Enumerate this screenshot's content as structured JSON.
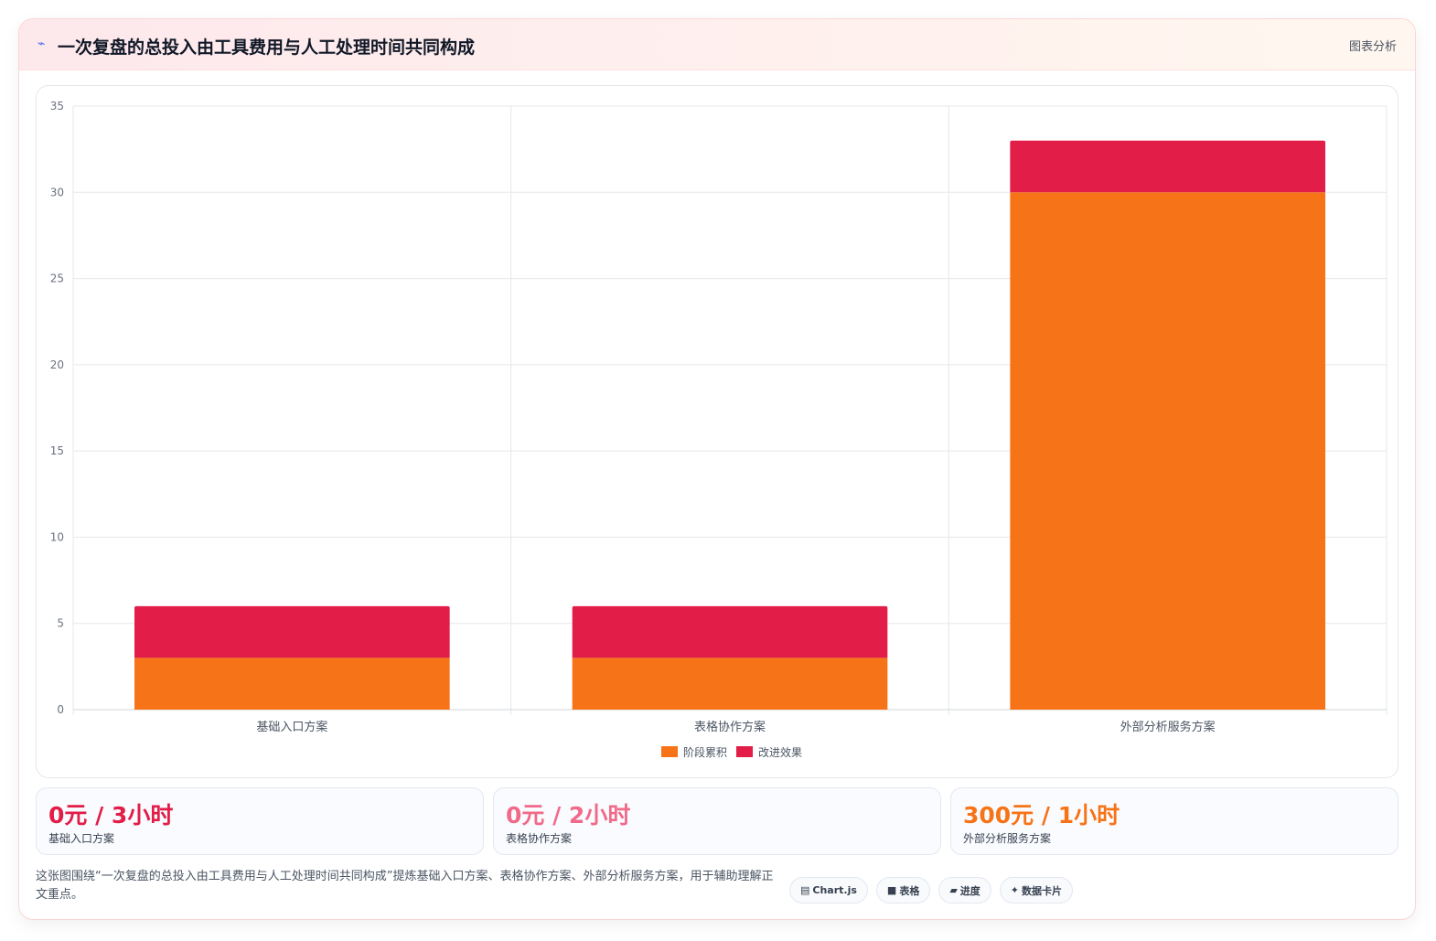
{
  "header": {
    "icon": "lightning-icon",
    "title": "一次复盘的总投入由工具费用与人工处理时间共同构成",
    "tag": "图表分析"
  },
  "chart_data": {
    "type": "bar",
    "stacked": true,
    "categories": [
      "基础入口方案",
      "表格协作方案",
      "外部分析服务方案"
    ],
    "series": [
      {
        "name": "阶段累积",
        "values": [
          3,
          3,
          30
        ],
        "color": "#f77318"
      },
      {
        "name": "改进效果",
        "values": [
          3,
          3,
          3
        ],
        "color": "#e11d48"
      }
    ],
    "ylim": [
      0,
      35
    ],
    "yticks": [
      0,
      5,
      10,
      15,
      20,
      25,
      30,
      35
    ],
    "grid": true,
    "legend": "bottom-center"
  },
  "stats": [
    {
      "value": "0元 / 3小时",
      "label": "基础入口方案",
      "color": "#e11d48"
    },
    {
      "value": "0元 / 2小时",
      "label": "表格协作方案",
      "color": "#f16a8a"
    },
    {
      "value": "300元 / 1小时",
      "label": "外部分析服务方案",
      "color": "#f77318"
    }
  ],
  "footer": {
    "text": "这张图围绕“一次复盘的总投入由工具费用与人工处理时间共同构成”提炼基础入口方案、表格协作方案、外部分析服务方案，用于辅助理解正文重点。",
    "chips": [
      {
        "icon": "chart-icon",
        "glyph": "▤",
        "label": "Chart.js"
      },
      {
        "icon": "table-icon",
        "glyph": "■",
        "label": "表格"
      },
      {
        "icon": "progress-icon",
        "glyph": "▰",
        "label": "进度"
      },
      {
        "icon": "sparkle-icon",
        "glyph": "✦",
        "label": "数据卡片"
      }
    ]
  }
}
